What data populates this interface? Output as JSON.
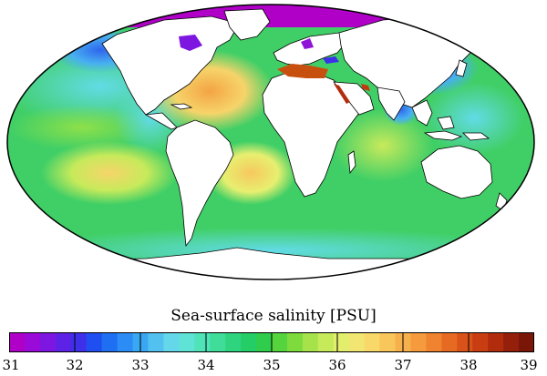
{
  "title": "Sea-surface salinity [PSU]",
  "colorbar": {
    "min": 31,
    "max": 39,
    "ticks": [
      "31",
      "32",
      "33",
      "34",
      "35",
      "36",
      "37",
      "38",
      "39"
    ],
    "colors": [
      "#b000c8",
      "#9a0ad8",
      "#7c16e0",
      "#5d22e6",
      "#3e30ea",
      "#1f4ff0",
      "#1f6ff2",
      "#2a8cf4",
      "#3aa7f2",
      "#53c1ef",
      "#65d7ea",
      "#5fe3d6",
      "#4fe3b8",
      "#3fdc9a",
      "#2fd47e",
      "#25cd66",
      "#30cc4c",
      "#55d43d",
      "#7ddb3d",
      "#a6e34a",
      "#c6ea5a",
      "#e2ee6c",
      "#f2e672",
      "#f7d868",
      "#f8c65b",
      "#f7b14c",
      "#f59b3d",
      "#f0832f",
      "#e76a22",
      "#d95219",
      "#c83e12",
      "#b12c0d",
      "#94200b",
      "#7a1608"
    ]
  },
  "land_color": "#ffffff",
  "ocean_base_color": "#40cf66"
}
